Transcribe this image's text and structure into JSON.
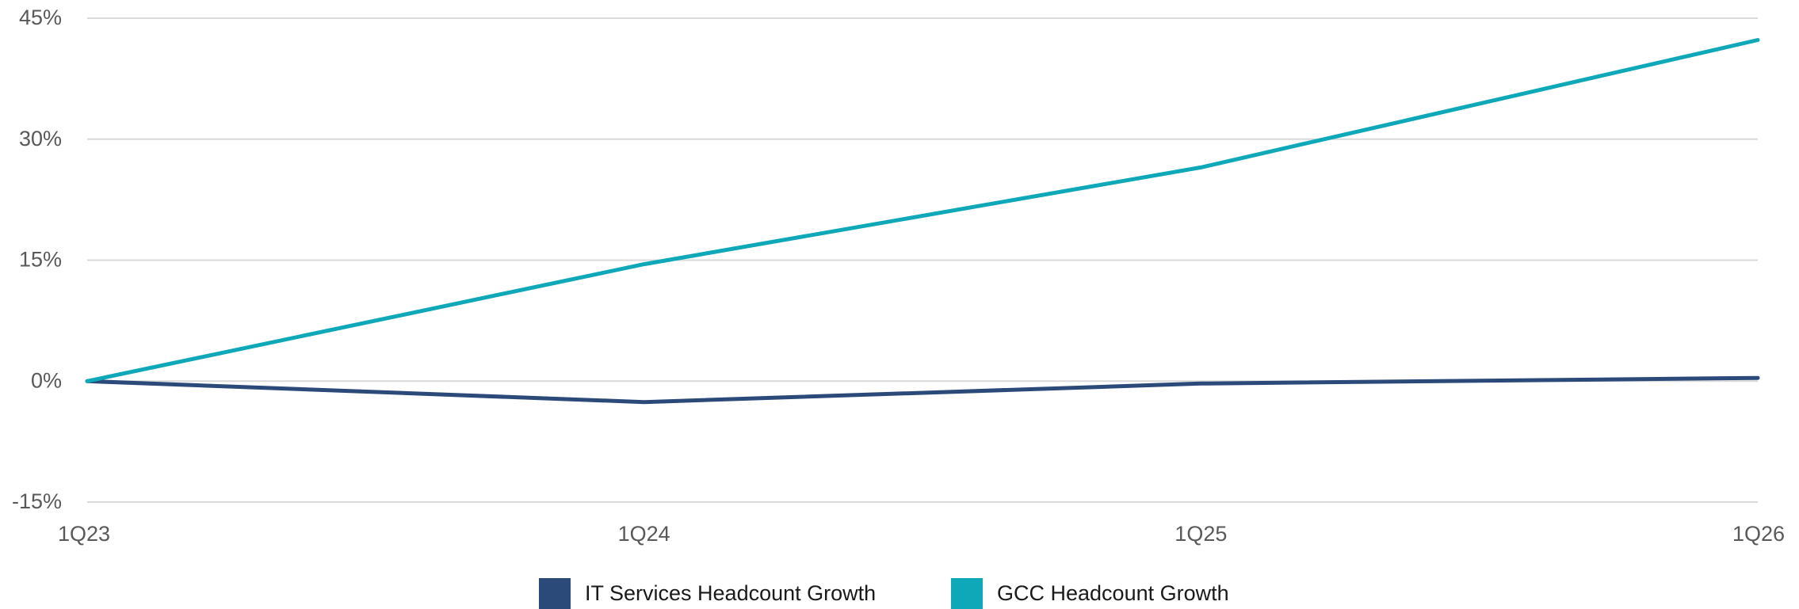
{
  "chart_data": {
    "type": "line",
    "categories": [
      "1Q23",
      "1Q24",
      "1Q25",
      "1Q26"
    ],
    "series": [
      {
        "name": "IT Services Headcount Growth",
        "values": [
          0,
          -2.6,
          -0.3,
          0.4
        ],
        "color": "#2b4a7a"
      },
      {
        "name": "GCC Headcount Growth",
        "values": [
          0,
          14.5,
          26.5,
          42.3
        ],
        "color": "#0fa8b8"
      }
    ],
    "y_ticks": [
      -15,
      0,
      15,
      30,
      45
    ],
    "y_tick_labels": [
      "-15%",
      "0%",
      "15%",
      "30%",
      "45%"
    ],
    "ylim": [
      -15,
      45
    ],
    "y_unit": "%",
    "grid": true,
    "legend_position": "bottom-center"
  }
}
